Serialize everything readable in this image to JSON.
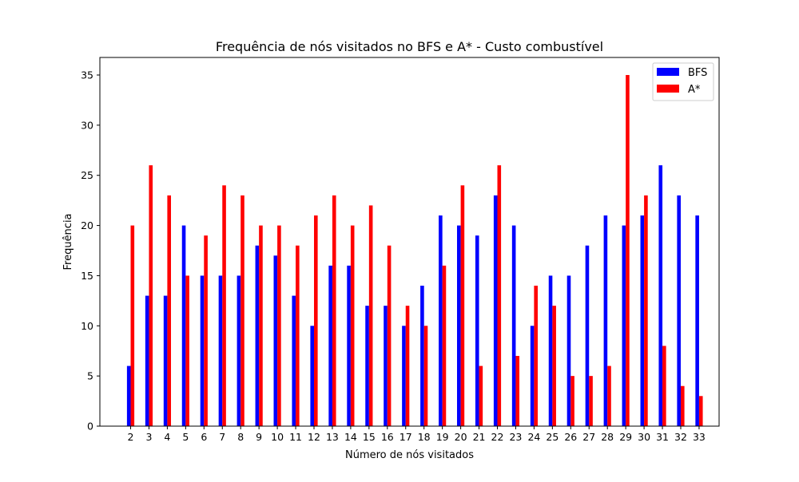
{
  "chart_data": {
    "type": "bar",
    "title": "Frequência de nós visitados no BFS e A* - Custo combustível",
    "xlabel": "Número de nós visitados",
    "ylabel": "Frequência",
    "categories": [
      "2",
      "3",
      "4",
      "5",
      "6",
      "7",
      "8",
      "9",
      "10",
      "11",
      "12",
      "13",
      "14",
      "15",
      "16",
      "17",
      "18",
      "19",
      "20",
      "21",
      "22",
      "23",
      "24",
      "25",
      "26",
      "27",
      "28",
      "29",
      "30",
      "31",
      "32",
      "33"
    ],
    "series": [
      {
        "name": "BFS",
        "color": "#0000ff",
        "values": [
          6,
          13,
          13,
          20,
          15,
          15,
          15,
          18,
          17,
          13,
          10,
          16,
          16,
          12,
          12,
          10,
          14,
          21,
          20,
          19,
          23,
          20,
          10,
          15,
          15,
          18,
          21,
          20,
          21,
          26,
          23,
          21
        ]
      },
      {
        "name": "A*",
        "color": "#ff0000",
        "values": [
          20,
          26,
          23,
          15,
          19,
          24,
          23,
          20,
          20,
          18,
          21,
          23,
          20,
          22,
          18,
          12,
          10,
          16,
          24,
          6,
          26,
          7,
          14,
          12,
          5,
          5,
          6,
          35,
          23,
          8,
          4,
          3
        ]
      }
    ],
    "ylim": [
      0,
      36.75
    ],
    "yticks": [
      0,
      5,
      10,
      15,
      20,
      25,
      30,
      35
    ],
    "grid": false,
    "legend_position": "top-right"
  }
}
